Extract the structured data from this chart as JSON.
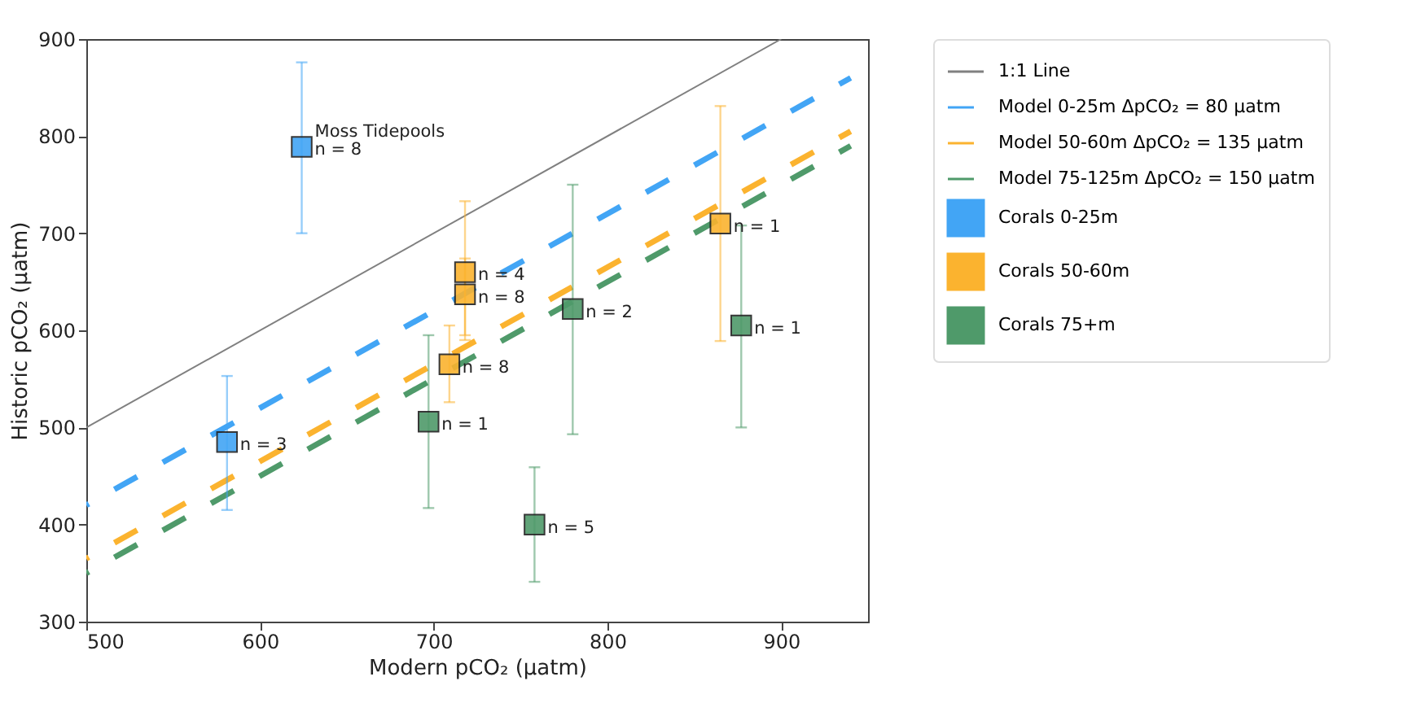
{
  "chart_data": {
    "type": "scatter",
    "xlabel": "Modern pCO₂ (μatm)",
    "ylabel": "Historic pCO₂ (μatm)",
    "xlim": [
      500,
      950
    ],
    "xticks": [
      500,
      600,
      700,
      800,
      900
    ],
    "ylim": [
      300,
      900
    ],
    "yticks": [
      300,
      400,
      500,
      600,
      700,
      800,
      900
    ],
    "grid": false,
    "legend": "right",
    "series": [
      {
        "name": "1:1 Line",
        "type": "line",
        "line_style": "solid",
        "color": "#808080",
        "x": [
          500,
          900
        ],
        "values": [
          500,
          900
        ]
      },
      {
        "name": "Model 0-25m ΔpCO₂ = 80 μatm",
        "type": "line",
        "line_style": "dashed",
        "color": "#42a5f5",
        "x": [
          500,
          940
        ],
        "values": [
          420,
          860
        ]
      },
      {
        "name": "Model 50-60m ΔpCO₂ = 135 μatm",
        "type": "line",
        "line_style": "dashed",
        "color": "#fbb32f",
        "x": [
          500,
          940
        ],
        "values": [
          365,
          805
        ]
      },
      {
        "name": "Model 75-125m ΔpCO₂ = 150 μatm",
        "type": "line",
        "line_style": "dashed",
        "color": "#4f9a6a",
        "x": [
          500,
          940
        ],
        "values": [
          350,
          790
        ]
      },
      {
        "name": "Corals 0-25m",
        "type": "scatter",
        "marker": "square",
        "color": "#42a5f5",
        "x": [
          581,
          624
        ],
        "values": [
          485,
          789
        ],
        "errors": [
          [
            415,
            553
          ],
          [
            700,
            876
          ]
        ]
      },
      {
        "name": "Corals 50-60m",
        "type": "scatter",
        "marker": "square",
        "color": "#fbb32f",
        "x": [
          709,
          718,
          718,
          865
        ],
        "values": [
          565,
          660,
          637,
          710
        ],
        "errors": [
          [
            526,
            605
          ],
          [
            590,
            733
          ],
          [
            595,
            674
          ],
          [
            589,
            831
          ]
        ]
      },
      {
        "name": "Corals 75+m",
        "type": "scatter",
        "marker": "square",
        "color": "#4f9a6a",
        "x": [
          697,
          758,
          780,
          877
        ],
        "values": [
          506,
          400,
          622,
          605
        ],
        "errors": [
          [
            417,
            595
          ],
          [
            341,
            459
          ],
          [
            493,
            750
          ],
          [
            500,
            708
          ]
        ]
      }
    ],
    "annotations": [
      {
        "text": "n = 3",
        "x": 581,
        "y": 485
      },
      {
        "text": "Moss Tidepools",
        "x": 624,
        "y": 789
      },
      {
        "text": "n = 8",
        "x": 624,
        "y": 789
      },
      {
        "text": "n = 8",
        "x": 709,
        "y": 565
      },
      {
        "text": "n = 4",
        "x": 718,
        "y": 660
      },
      {
        "text": "n = 8",
        "x": 718,
        "y": 637
      },
      {
        "text": "n = 1",
        "x": 865,
        "y": 710
      },
      {
        "text": "n = 1",
        "x": 697,
        "y": 506
      },
      {
        "text": "n = 5",
        "x": 758,
        "y": 400
      },
      {
        "text": "n = 2",
        "x": 780,
        "y": 622
      },
      {
        "text": "n = 1",
        "x": 877,
        "y": 605
      }
    ]
  }
}
